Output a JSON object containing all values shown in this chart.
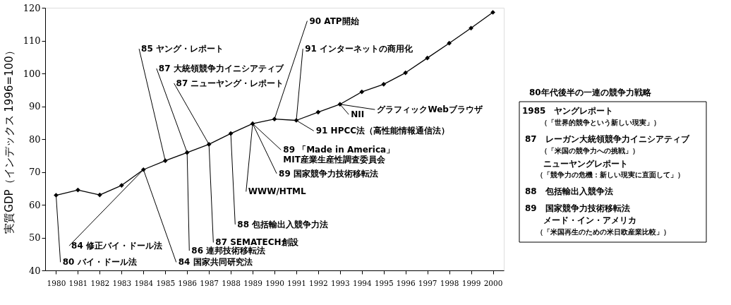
{
  "chart_data": {
    "type": "line",
    "ylabel": "実質GDP（インデックス 1996=100）",
    "x": [
      1980,
      1981,
      1982,
      1983,
      1984,
      1985,
      1986,
      1987,
      1988,
      1989,
      1990,
      1991,
      1992,
      1993,
      1994,
      1995,
      1996,
      1997,
      1998,
      1999,
      2000
    ],
    "series": [
      {
        "color": "#000000",
        "values": [
          62.9,
          64.5,
          63.0,
          65.9,
          70.7,
          73.4,
          75.9,
          78.4,
          81.7,
          84.7,
          86.1,
          85.7,
          88.2,
          90.6,
          94.4,
          96.7,
          100.2,
          104.7,
          109.2,
          113.8,
          118.6
        ]
      }
    ],
    "xlim": [
      1979.5,
      2000.5
    ],
    "xticks": [
      1980,
      1981,
      1982,
      1983,
      1984,
      1985,
      1986,
      1987,
      1988,
      1989,
      1990,
      1991,
      1992,
      1993,
      1994,
      1995,
      1996,
      1997,
      1998,
      1999,
      2000
    ],
    "ylim": [
      40,
      120
    ],
    "yticks": [
      40,
      50,
      60,
      70,
      80,
      90,
      100,
      110,
      120
    ],
    "marker": "diamond",
    "grid": false,
    "annotations": [
      {
        "text": "80 バイ・ドール法",
        "x": 1980,
        "y": 62.9
      },
      {
        "text": "84 修正バイ・ドール法",
        "x": 1984,
        "y": 70.7
      },
      {
        "text": "84 国家共同研究法",
        "x": 1984,
        "y": 70.7
      },
      {
        "text": "85 ヤング・レポート",
        "x": 1985,
        "y": 73.4
      },
      {
        "text": "87 大統領競争力イニシアティブ",
        "x": 1986,
        "y": 75.9
      },
      {
        "text": "87 ニューヤング・レポート",
        "x": 1987,
        "y": 78.4
      },
      {
        "text": "86 連邦技術移転法",
        "x": 1986,
        "y": 75.9
      },
      {
        "text": "87 SEMATECH創設",
        "x": 1987,
        "y": 78.4
      },
      {
        "text": "88 包括輸出入競争力法",
        "x": 1988,
        "y": 81.7
      },
      {
        "text": "WWW/HTML",
        "x": 1989,
        "y": 84.7
      },
      {
        "text": "89 国家競争力技術移転法",
        "x": 1989,
        "y": 84.7
      },
      {
        "text": "89 「Made in America」\nMIT産業生産性調査委員会",
        "x": 1989,
        "y": 84.7
      },
      {
        "text": "90 ATP開始",
        "x": 1990,
        "y": 86.1
      },
      {
        "text": "91 インターネットの商用化",
        "x": 1991,
        "y": 85.7
      },
      {
        "text": "91 HPCC法（高性能情報通信法）",
        "x": 1991,
        "y": 85.7
      },
      {
        "text": "NII",
        "x": 1993,
        "y": 90.6
      },
      {
        "text": "グラフィックWebブラウザ",
        "x": 1993,
        "y": 90.6
      },
      "80年代後半の一連の競争力戦略",
      "1985　ヤングレポート",
      "（「世界的競争という新しい現実」）",
      "87　レーガン大統領競争力イニシアティブ",
      "（「米国の競争力への挑戦」）",
      "ニューヤングレポート",
      "（「競争力の危機：新しい現実に直面して」）",
      "88　包括輸出入競争法",
      "89　国家競争力技術移転法",
      "メード・イン・アメリカ",
      "（「米国再生のための米日欧産業比較」）"
    ]
  }
}
